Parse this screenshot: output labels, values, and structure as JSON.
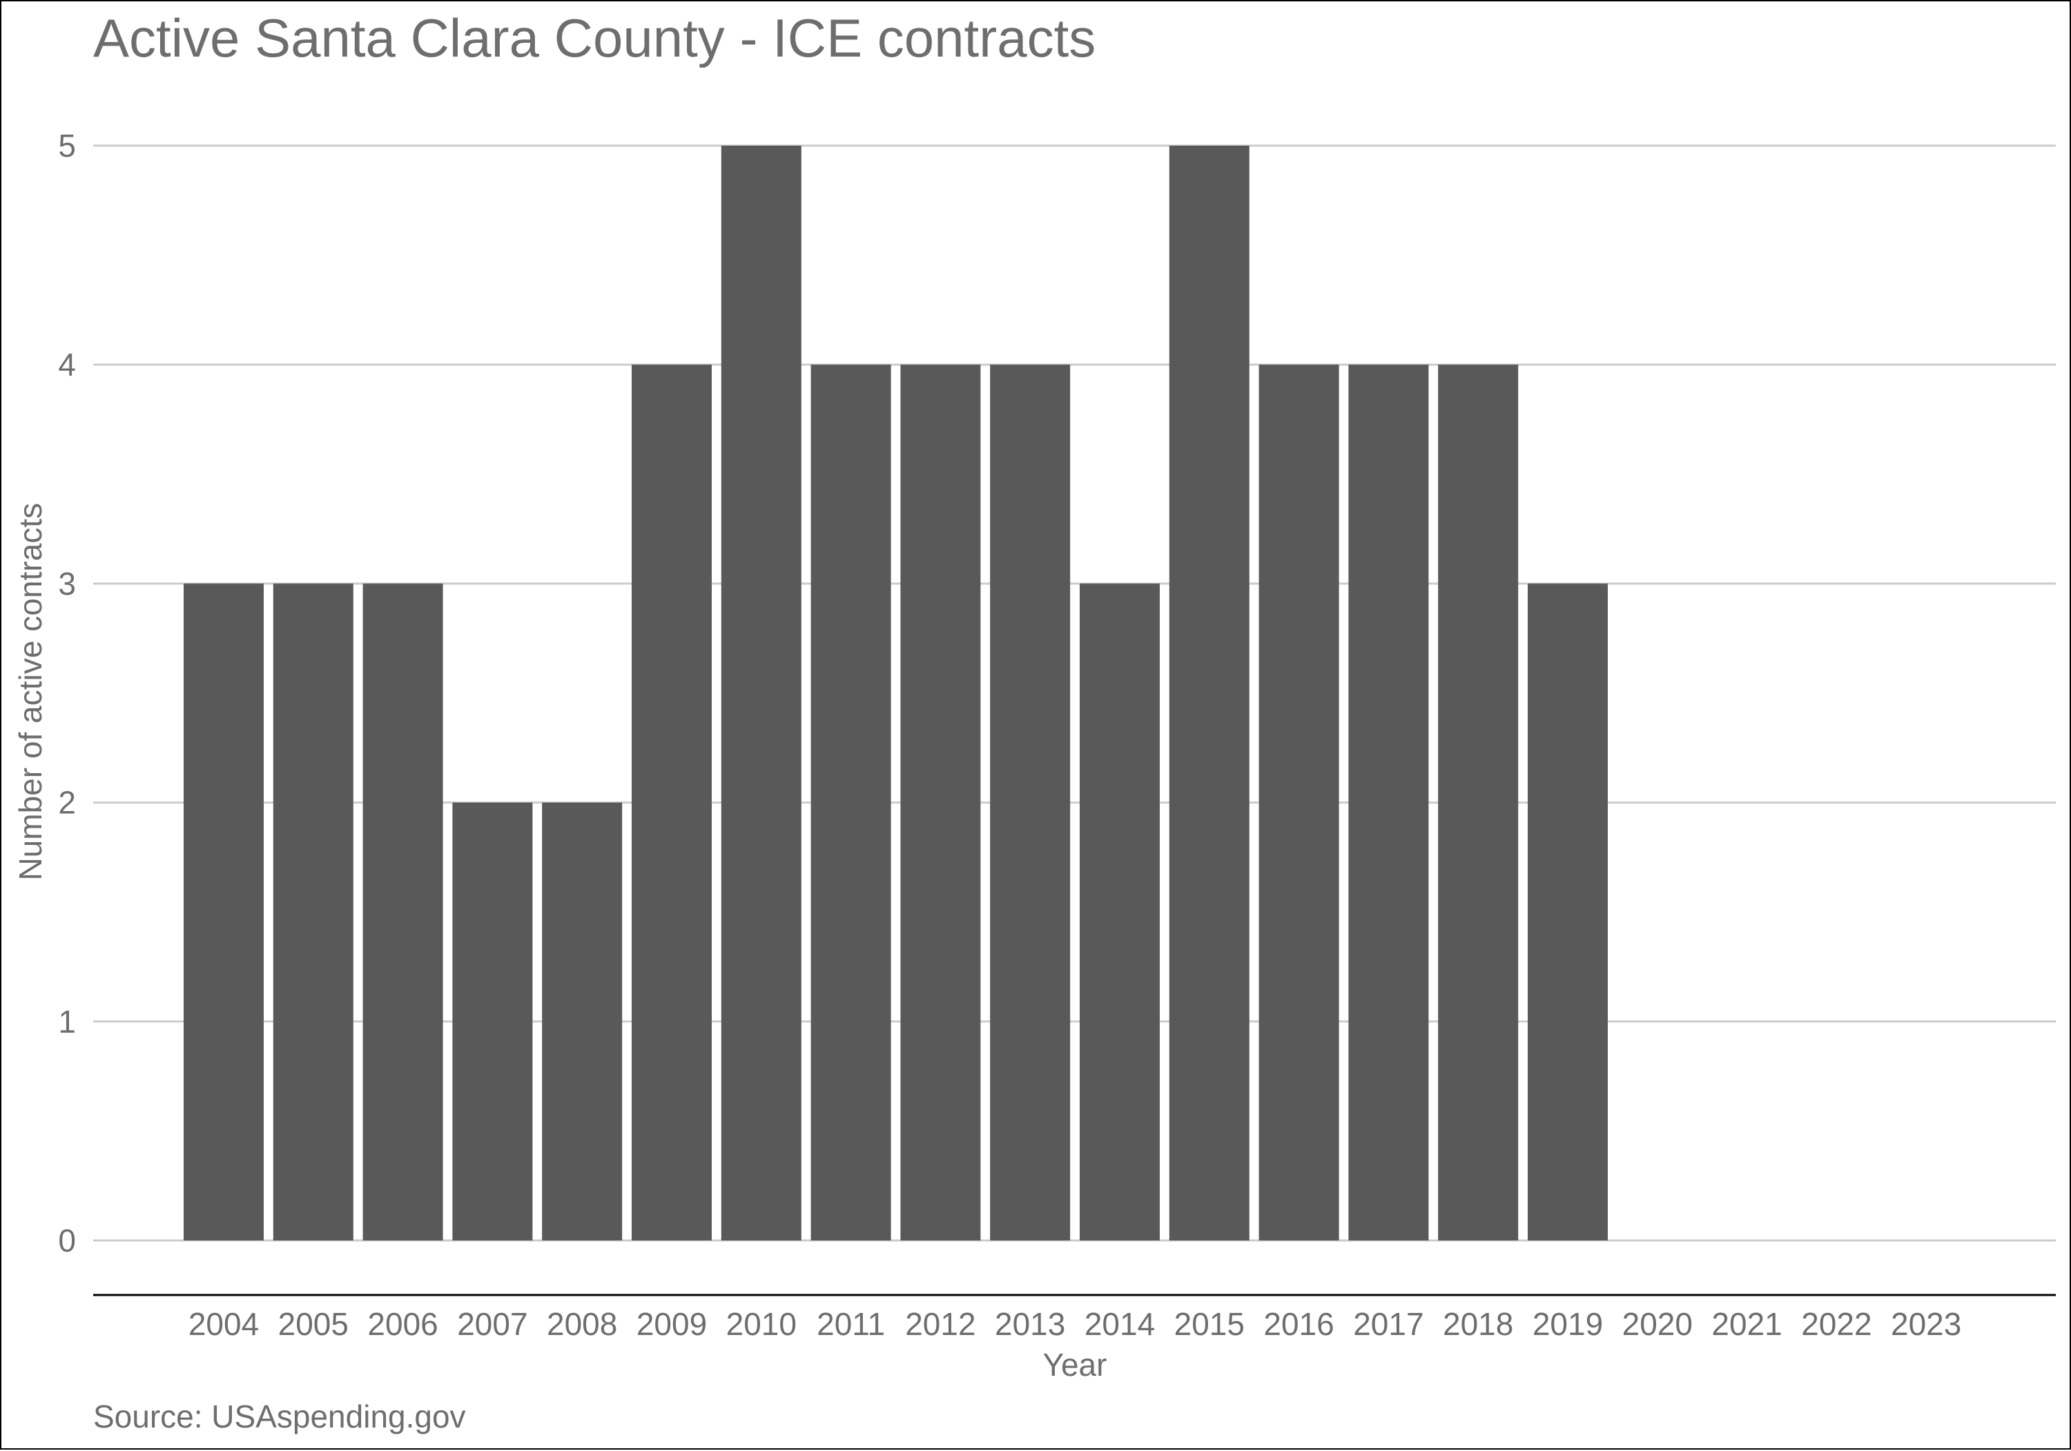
{
  "chart_data": {
    "type": "bar",
    "title": "Active Santa Clara County - ICE contracts",
    "xlabel": "Year",
    "ylabel": "Number of active contracts",
    "caption": "Source: USAspending.gov",
    "categories": [
      "2004",
      "2005",
      "2006",
      "2007",
      "2008",
      "2009",
      "2010",
      "2011",
      "2012",
      "2013",
      "2014",
      "2015",
      "2016",
      "2017",
      "2018",
      "2019",
      "2020",
      "2021",
      "2022",
      "2023"
    ],
    "values": [
      3,
      3,
      3,
      2,
      2,
      4,
      5,
      4,
      4,
      4,
      3,
      5,
      4,
      4,
      4,
      3,
      0,
      0,
      0,
      0
    ],
    "ylim": [
      0,
      5
    ],
    "yticks": [
      0,
      1,
      2,
      3,
      4,
      5
    ],
    "grid": true,
    "bar_color": "#595959",
    "grid_color": "#cccccc",
    "text_color": "#6e6e6e"
  }
}
